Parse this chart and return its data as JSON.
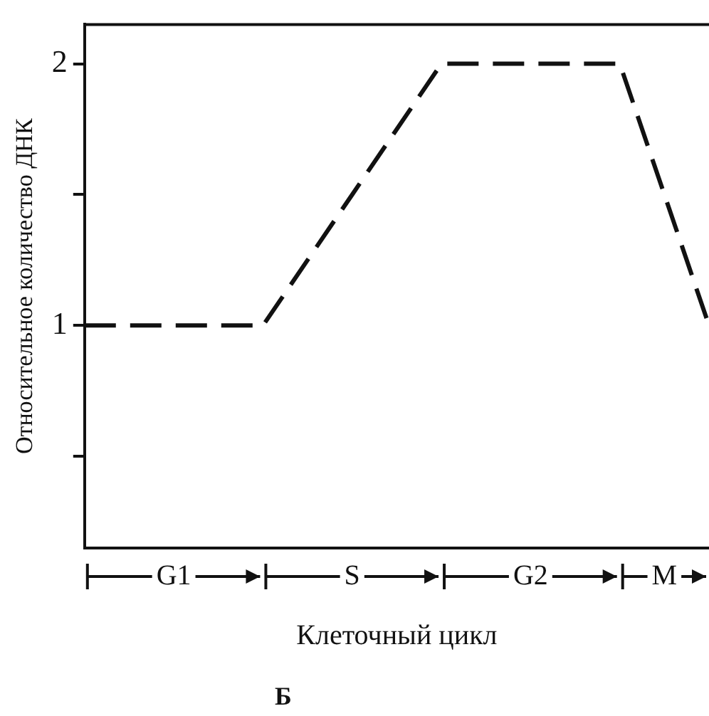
{
  "chart_data": {
    "type": "line",
    "xlabel": "Клеточный цикл",
    "ylabel": "Относительное количество ДНК",
    "categories": [
      null,
      null,
      null,
      null,
      null,
      null,
      null,
      null
    ],
    "series": [
      {
        "color": "#111111",
        "values": [
          1,
          1,
          1,
          1.5,
          2,
          2,
          2,
          1
        ]
      }
    ],
    "ylim": [
      0.15,
      2.15
    ],
    "yticks": [
      {
        "value": 0.5,
        "label": null
      },
      1,
      {
        "value": 1.5,
        "label": null
      },
      2
    ],
    "annotations": [
      "G1",
      "S",
      "G2",
      "M",
      "Б"
    ],
    "tick_labels": "y",
    "grid": false,
    "legend": false,
    "marker": "none",
    "line_style": "dashed"
  }
}
